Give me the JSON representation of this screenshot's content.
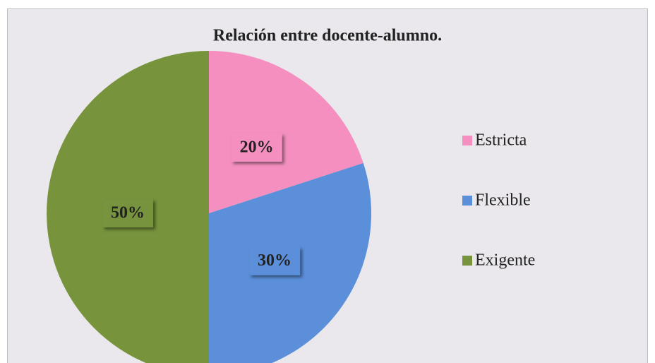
{
  "chart_data": {
    "type": "pie",
    "title": "Relación entre docente-alumno.",
    "categories": [
      "Estricta",
      "Flexible",
      "Exigente"
    ],
    "values": [
      20,
      30,
      50
    ],
    "value_labels": [
      "20%",
      "30%",
      "50%"
    ],
    "colors": [
      "#f48fbf",
      "#5b8fd9",
      "#77933c"
    ],
    "legend": "right"
  }
}
